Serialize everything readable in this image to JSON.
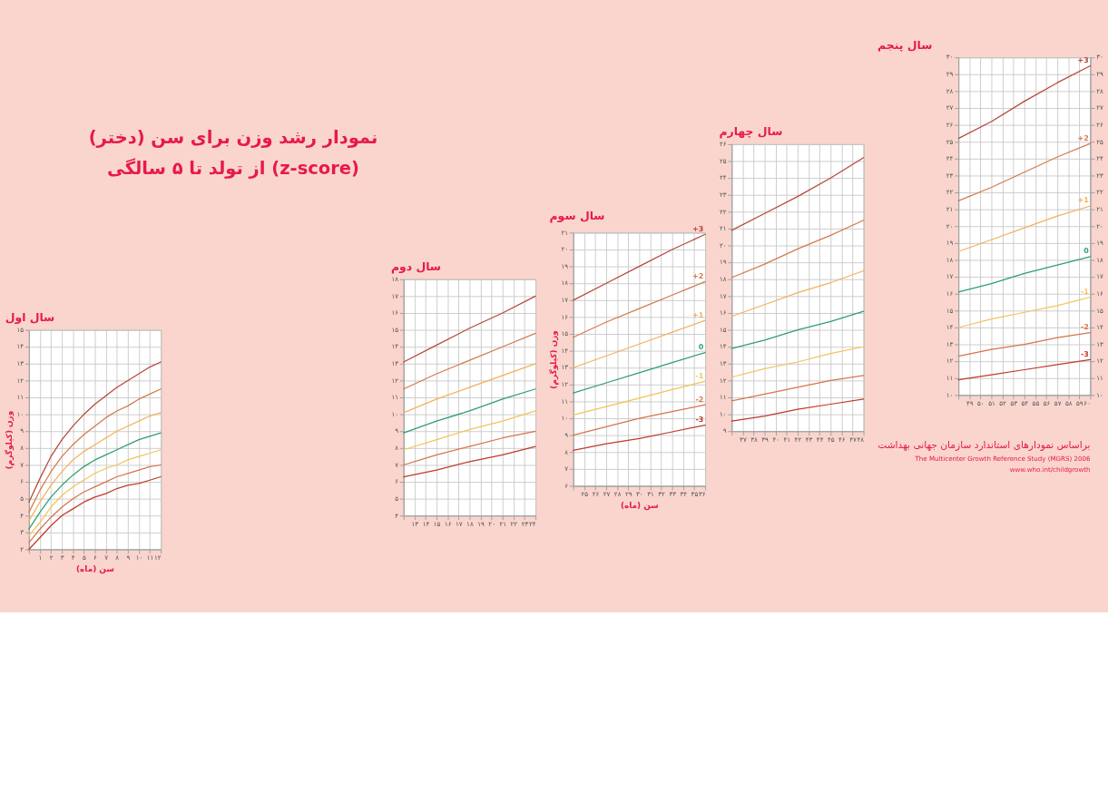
{
  "chart_data": [
    {
      "type": "line",
      "title": "سال اول",
      "xlabel": "سن (ماه)",
      "ylabel": "وزن (کیلوگرم)",
      "grid": true,
      "x": [
        0,
        1,
        2,
        3,
        4,
        5,
        6,
        7,
        8,
        9,
        10,
        11,
        12
      ],
      "xlim": [
        0,
        12
      ],
      "xticks": [
        {
          "value": 0,
          "label": null
        },
        {
          "value": 1,
          "label": "۱"
        },
        {
          "value": 2,
          "label": "۲"
        },
        {
          "value": 3,
          "label": "۳"
        },
        {
          "value": 4,
          "label": "۴"
        },
        {
          "value": 5,
          "label": "۵"
        },
        {
          "value": 6,
          "label": "۶"
        },
        {
          "value": 7,
          "label": "۷"
        },
        {
          "value": 8,
          "label": "۸"
        },
        {
          "value": 9,
          "label": "۹"
        },
        {
          "value": 10,
          "label": "۱۰"
        },
        {
          "value": 11,
          "label": "۱۱"
        },
        {
          "value": 12,
          "label": "۱۲"
        }
      ],
      "ylim": [
        2,
        15
      ],
      "yticks": [
        {
          "value": 2,
          "label": "۲"
        },
        {
          "value": 3,
          "label": "۳"
        },
        {
          "value": 4,
          "label": "۴"
        },
        {
          "value": 5,
          "label": "۵"
        },
        {
          "value": 6,
          "label": "۶"
        },
        {
          "value": 7,
          "label": "۷"
        },
        {
          "value": 8,
          "label": "۸"
        },
        {
          "value": 9,
          "label": "۹"
        },
        {
          "value": 10,
          "label": "۱۰"
        },
        {
          "value": 11,
          "label": "۱۱"
        },
        {
          "value": 12,
          "label": "۱۲"
        },
        {
          "value": 13,
          "label": "۱۳"
        },
        {
          "value": 14,
          "label": "۱۴"
        },
        {
          "value": 15,
          "label": "۱۵"
        }
      ],
      "series": [
        {
          "color": "#b5473a",
          "values": [
            4.8,
            6.2,
            7.5,
            8.5,
            9.3,
            10.0,
            10.6,
            11.1,
            11.6,
            12.0,
            12.4,
            12.8,
            13.1
          ]
        },
        {
          "color": "#d47a4a",
          "values": [
            4.2,
            5.5,
            6.6,
            7.5,
            8.2,
            8.8,
            9.3,
            9.8,
            10.2,
            10.5,
            10.9,
            11.2,
            11.5
          ]
        },
        {
          "color": "#f2b15a",
          "values": [
            3.7,
            4.8,
            5.8,
            6.6,
            7.3,
            7.8,
            8.2,
            8.6,
            9.0,
            9.3,
            9.6,
            9.9,
            10.1
          ]
        },
        {
          "color": "#2f9e6e",
          "values": [
            3.2,
            4.2,
            5.1,
            5.8,
            6.4,
            6.9,
            7.3,
            7.6,
            7.9,
            8.2,
            8.5,
            8.7,
            8.9
          ]
        },
        {
          "color": "#f2c45a",
          "values": [
            2.8,
            3.6,
            4.5,
            5.2,
            5.7,
            6.1,
            6.5,
            6.8,
            7.0,
            7.3,
            7.5,
            7.7,
            7.9
          ]
        },
        {
          "color": "#d8734a",
          "values": [
            2.4,
            3.2,
            3.9,
            4.5,
            5.0,
            5.4,
            5.7,
            6.0,
            6.3,
            6.5,
            6.7,
            6.9,
            7.0
          ]
        },
        {
          "color": "#c0392b",
          "values": [
            2.0,
            2.7,
            3.4,
            4.0,
            4.4,
            4.8,
            5.1,
            5.3,
            5.6,
            5.8,
            5.9,
            6.1,
            6.3
          ]
        }
      ],
      "annotations": [
        "نمودار رشد وزن برای سن (دختر)",
        "از تولد تا ۵ سالگی (z-score)"
      ]
    },
    {
      "type": "line",
      "title": "سال دوم",
      "grid": true,
      "x": [
        12,
        15,
        18,
        21,
        24
      ],
      "xlim": [
        12,
        24
      ],
      "xticks": [
        {
          "value": 12,
          "label": null
        },
        {
          "value": 13,
          "label": "۱۳"
        },
        {
          "value": 14,
          "label": "۱۴"
        },
        {
          "value": 15,
          "label": "۱۵"
        },
        {
          "value": 16,
          "label": "۱۶"
        },
        {
          "value": 17,
          "label": "۱۷"
        },
        {
          "value": 18,
          "label": "۱۸"
        },
        {
          "value": 19,
          "label": "۱۹"
        },
        {
          "value": 20,
          "label": "۲۰"
        },
        {
          "value": 21,
          "label": "۲۱"
        },
        {
          "value": 22,
          "label": "۲۲"
        },
        {
          "value": 23,
          "label": "۲۳"
        },
        {
          "value": 24,
          "label": "۲۴"
        }
      ],
      "ylim": [
        4,
        18
      ],
      "yticks": [
        {
          "value": 4,
          "label": "۴"
        },
        {
          "value": 5,
          "label": "۵"
        },
        {
          "value": 6,
          "label": "۶"
        },
        {
          "value": 7,
          "label": "۷"
        },
        {
          "value": 8,
          "label": "۸"
        },
        {
          "value": 9,
          "label": "۹"
        },
        {
          "value": 10,
          "label": "۱۰"
        },
        {
          "value": 11,
          "label": "۱۱"
        },
        {
          "value": 12,
          "label": "۱۲"
        },
        {
          "value": 13,
          "label": "۱۳"
        },
        {
          "value": 14,
          "label": "۱۴"
        },
        {
          "value": 15,
          "label": "۱۵"
        },
        {
          "value": 16,
          "label": "۱۶"
        },
        {
          "value": 17,
          "label": "۱۷"
        },
        {
          "value": 18,
          "label": "۱۸"
        }
      ],
      "series": [
        {
          "color": "#b5473a",
          "values": [
            13.1,
            14.1,
            15.1,
            16.0,
            17.0
          ]
        },
        {
          "color": "#d47a4a",
          "values": [
            11.5,
            12.4,
            13.2,
            14.0,
            14.8
          ]
        },
        {
          "color": "#f2b15a",
          "values": [
            10.1,
            10.9,
            11.6,
            12.3,
            13.0
          ]
        },
        {
          "color": "#2f9e6e",
          "values": [
            8.9,
            9.6,
            10.2,
            10.9,
            11.5
          ]
        },
        {
          "color": "#f2c45a",
          "values": [
            7.9,
            8.5,
            9.1,
            9.6,
            10.2
          ]
        },
        {
          "color": "#d8734a",
          "values": [
            7.0,
            7.6,
            8.1,
            8.6,
            9.0
          ]
        },
        {
          "color": "#c0392b",
          "values": [
            6.3,
            6.7,
            7.2,
            7.6,
            8.1
          ]
        }
      ]
    },
    {
      "type": "line",
      "title": "سال سوم",
      "xlabel": "سن (ماه)",
      "ylabel": "وزن (کیلوگرم)",
      "grid": true,
      "x": [
        24,
        27,
        30,
        33,
        36
      ],
      "xlim": [
        24,
        36
      ],
      "xticks": [
        {
          "value": 24,
          "label": null
        },
        {
          "value": 25,
          "label": "۲۵"
        },
        {
          "value": 26,
          "label": "۲۶"
        },
        {
          "value": 27,
          "label": "۲۷"
        },
        {
          "value": 28,
          "label": "۲۸"
        },
        {
          "value": 29,
          "label": "۲۹"
        },
        {
          "value": 30,
          "label": "۳۰"
        },
        {
          "value": 31,
          "label": "۳۱"
        },
        {
          "value": 32,
          "label": "۳۲"
        },
        {
          "value": 33,
          "label": "۳۳"
        },
        {
          "value": 34,
          "label": "۳۴"
        },
        {
          "value": 35,
          "label": "۳۵"
        },
        {
          "value": 36,
          "label": "۳۶"
        }
      ],
      "ylim": [
        6,
        21
      ],
      "yticks": [
        {
          "value": 6,
          "label": "۶"
        },
        {
          "value": 7,
          "label": "۷"
        },
        {
          "value": 8,
          "label": "۸"
        },
        {
          "value": 9,
          "label": "۹"
        },
        {
          "value": 10,
          "label": "۱۰"
        },
        {
          "value": 11,
          "label": "۱۱"
        },
        {
          "value": 12,
          "label": "۱۲"
        },
        {
          "value": 13,
          "label": "۱۳"
        },
        {
          "value": 14,
          "label": "۱۴"
        },
        {
          "value": 15,
          "label": "۱۵"
        },
        {
          "value": 16,
          "label": "۱۶"
        },
        {
          "value": 17,
          "label": "۱۷"
        },
        {
          "value": 18,
          "label": "۱۸"
        },
        {
          "value": 19,
          "label": "۱۹"
        },
        {
          "value": 20,
          "label": "۲۰"
        },
        {
          "value": 21,
          "label": "۲۱"
        }
      ],
      "series": [
        {
          "name": "+3",
          "color": "#b5473a",
          "values": [
            17.0,
            18.0,
            19.0,
            20.0,
            20.9
          ]
        },
        {
          "name": "+2",
          "color": "#d47a4a",
          "values": [
            14.8,
            15.7,
            16.5,
            17.3,
            18.1
          ]
        },
        {
          "name": "+1",
          "color": "#f2b15a",
          "values": [
            13.0,
            13.7,
            14.4,
            15.1,
            15.8
          ]
        },
        {
          "name": "0",
          "color": "#2f9e6e",
          "values": [
            11.5,
            12.1,
            12.7,
            13.3,
            13.9
          ]
        },
        {
          "name": "-1",
          "color": "#f2c45a",
          "values": [
            10.2,
            10.7,
            11.2,
            11.7,
            12.2
          ]
        },
        {
          "name": "-2",
          "color": "#d8734a",
          "values": [
            9.0,
            9.5,
            10.0,
            10.4,
            10.8
          ]
        },
        {
          "name": "-3",
          "color": "#c0392b",
          "values": [
            8.1,
            8.5,
            8.8,
            9.2,
            9.6
          ]
        }
      ]
    },
    {
      "type": "line",
      "title": "سال چهارم",
      "grid": true,
      "x": [
        36,
        39,
        42,
        45,
        48
      ],
      "xlim": [
        36,
        48
      ],
      "xticks": [
        {
          "value": 36,
          "label": null
        },
        {
          "value": 37,
          "label": "۳۷"
        },
        {
          "value": 38,
          "label": "۳۸"
        },
        {
          "value": 39,
          "label": "۳۹"
        },
        {
          "value": 40,
          "label": "۴۰"
        },
        {
          "value": 41,
          "label": "۴۱"
        },
        {
          "value": 42,
          "label": "۴۲"
        },
        {
          "value": 43,
          "label": "۴۳"
        },
        {
          "value": 44,
          "label": "۴۴"
        },
        {
          "value": 45,
          "label": "۴۵"
        },
        {
          "value": 46,
          "label": "۴۶"
        },
        {
          "value": 47,
          "label": "۴۷"
        },
        {
          "value": 48,
          "label": "۴۸"
        }
      ],
      "ylim": [
        9,
        26
      ],
      "yticks": [
        {
          "value": 9,
          "label": "۹"
        },
        {
          "value": 10,
          "label": "۱۰"
        },
        {
          "value": 11,
          "label": "۱۱"
        },
        {
          "value": 12,
          "label": "۱۲"
        },
        {
          "value": 13,
          "label": "۱۳"
        },
        {
          "value": 14,
          "label": "۱۴"
        },
        {
          "value": 15,
          "label": "۱۵"
        },
        {
          "value": 16,
          "label": "۱۶"
        },
        {
          "value": 17,
          "label": "۱۷"
        },
        {
          "value": 18,
          "label": "۱۸"
        },
        {
          "value": 19,
          "label": "۱۹"
        },
        {
          "value": 20,
          "label": "۲۰"
        },
        {
          "value": 21,
          "label": "۲۱"
        },
        {
          "value": 22,
          "label": "۲۲"
        },
        {
          "value": 23,
          "label": "۲۳"
        },
        {
          "value": 24,
          "label": "۲۴"
        },
        {
          "value": 25,
          "label": "۲۵"
        },
        {
          "value": 26,
          "label": "۲۶"
        }
      ],
      "series": [
        {
          "color": "#b5473a",
          "values": [
            20.9,
            21.9,
            22.9,
            24.0,
            25.2
          ]
        },
        {
          "color": "#d47a4a",
          "values": [
            18.1,
            18.9,
            19.8,
            20.6,
            21.5
          ]
        },
        {
          "color": "#f2b15a",
          "values": [
            15.8,
            16.5,
            17.2,
            17.8,
            18.5
          ]
        },
        {
          "color": "#2f9e6e",
          "values": [
            13.9,
            14.4,
            15.0,
            15.5,
            16.1
          ]
        },
        {
          "color": "#f2c45a",
          "values": [
            12.2,
            12.7,
            13.1,
            13.6,
            14.0
          ]
        },
        {
          "color": "#d8734a",
          "values": [
            10.8,
            11.2,
            11.6,
            12.0,
            12.3
          ]
        },
        {
          "color": "#c0392b",
          "values": [
            9.6,
            9.9,
            10.3,
            10.6,
            10.9
          ]
        }
      ]
    },
    {
      "type": "line",
      "title": "سال پنجم",
      "grid": true,
      "x": [
        48,
        51,
        54,
        57,
        60
      ],
      "xlim": [
        48,
        60
      ],
      "xticks": [
        {
          "value": 48,
          "label": null
        },
        {
          "value": 49,
          "label": "۴۹"
        },
        {
          "value": 50,
          "label": "۵۰"
        },
        {
          "value": 51,
          "label": "۵۱"
        },
        {
          "value": 52,
          "label": "۵۲"
        },
        {
          "value": 53,
          "label": "۵۳"
        },
        {
          "value": 54,
          "label": "۵۴"
        },
        {
          "value": 55,
          "label": "۵۵"
        },
        {
          "value": 56,
          "label": "۵۶"
        },
        {
          "value": 57,
          "label": "۵۷"
        },
        {
          "value": 58,
          "label": "۵۸"
        },
        {
          "value": 59,
          "label": "۵۹"
        },
        {
          "value": 60,
          "label": "۶۰"
        }
      ],
      "ylim": [
        10,
        30
      ],
      "yticks": [
        {
          "value": 10,
          "label": "۱۰"
        },
        {
          "value": 11,
          "label": "۱۱"
        },
        {
          "value": 12,
          "label": "۱۲"
        },
        {
          "value": 13,
          "label": "۱۳"
        },
        {
          "value": 14,
          "label": "۱۴"
        },
        {
          "value": 15,
          "label": "۱۵"
        },
        {
          "value": 16,
          "label": "۱۶"
        },
        {
          "value": 17,
          "label": "۱۷"
        },
        {
          "value": 18,
          "label": "۱۸"
        },
        {
          "value": 19,
          "label": "۱۹"
        },
        {
          "value": 20,
          "label": "۲۰"
        },
        {
          "value": 21,
          "label": "۲۱"
        },
        {
          "value": 22,
          "label": "۲۲"
        },
        {
          "value": 23,
          "label": "۲۳"
        },
        {
          "value": 24,
          "label": "۲۴"
        },
        {
          "value": 25,
          "label": "۲۵"
        },
        {
          "value": 26,
          "label": "۲۶"
        },
        {
          "value": 27,
          "label": "۲۷"
        },
        {
          "value": 28,
          "label": "۲۸"
        },
        {
          "value": 29,
          "label": "۲۹"
        },
        {
          "value": 30,
          "label": "۳۰"
        }
      ],
      "y2lim": [
        10,
        30
      ],
      "y2ticks": [
        {
          "value": 10,
          "label": "۱۰"
        },
        {
          "value": 11,
          "label": "۱۱"
        },
        {
          "value": 12,
          "label": "۱۲"
        },
        {
          "value": 13,
          "label": "۱۳"
        },
        {
          "value": 14,
          "label": "۱۴"
        },
        {
          "value": 15,
          "label": "۱۵"
        },
        {
          "value": 16,
          "label": "۱۶"
        },
        {
          "value": 17,
          "label": "۱۷"
        },
        {
          "value": 18,
          "label": "۱۸"
        },
        {
          "value": 19,
          "label": "۱۹"
        },
        {
          "value": 20,
          "label": "۲۰"
        },
        {
          "value": 21,
          "label": "۲۱"
        },
        {
          "value": 22,
          "label": "۲۲"
        },
        {
          "value": 23,
          "label": "۲۳"
        },
        {
          "value": 24,
          "label": "۲۴"
        },
        {
          "value": 25,
          "label": "۲۵"
        },
        {
          "value": 26,
          "label": "۲۶"
        },
        {
          "value": 27,
          "label": "۲۷"
        },
        {
          "value": 28,
          "label": "۲۸"
        },
        {
          "value": 29,
          "label": "۲۹"
        },
        {
          "value": 30,
          "label": "۳۰"
        }
      ],
      "series": [
        {
          "name": "+3",
          "color": "#b5473a",
          "values": [
            25.2,
            26.2,
            27.4,
            28.5,
            29.5
          ]
        },
        {
          "name": "+2",
          "color": "#d47a4a",
          "values": [
            21.5,
            22.3,
            23.2,
            24.1,
            24.9
          ]
        },
        {
          "name": "+1",
          "color": "#f2b15a",
          "values": [
            18.5,
            19.2,
            19.9,
            20.6,
            21.2
          ]
        },
        {
          "name": "0",
          "color": "#2f9e6e",
          "values": [
            16.1,
            16.6,
            17.2,
            17.7,
            18.2
          ]
        },
        {
          "name": "-1",
          "color": "#f2c45a",
          "values": [
            14.0,
            14.5,
            14.9,
            15.3,
            15.8
          ]
        },
        {
          "name": "-2",
          "color": "#d8734a",
          "values": [
            12.3,
            12.7,
            13.0,
            13.4,
            13.7
          ]
        },
        {
          "name": "-3",
          "color": "#c0392b",
          "values": [
            10.9,
            11.2,
            11.5,
            11.8,
            12.1
          ]
        }
      ],
      "annotations": [
        "براساس نمودارهای استاندارد سازمان جهانی بهداشت",
        "The Multicenter Growth Reference Study (MGRS) 2006",
        "www.who.int/childgrowth"
      ]
    }
  ]
}
